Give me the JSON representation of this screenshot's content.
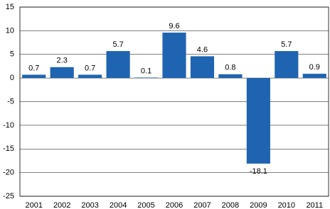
{
  "chart_data": {
    "type": "bar",
    "categories": [
      "2001",
      "2002",
      "2003",
      "2004",
      "2005",
      "2006",
      "2007",
      "2008",
      "2009",
      "2010",
      "2011"
    ],
    "values": [
      0.7,
      2.3,
      0.7,
      5.7,
      0.1,
      9.6,
      4.6,
      0.8,
      -18.1,
      5.7,
      0.9
    ],
    "color": "#1f64b0",
    "ylim": [
      -25,
      15
    ],
    "yticks": [
      -25,
      -20,
      -15,
      -10,
      -5,
      0,
      5,
      10,
      15
    ],
    "grid": true
  }
}
